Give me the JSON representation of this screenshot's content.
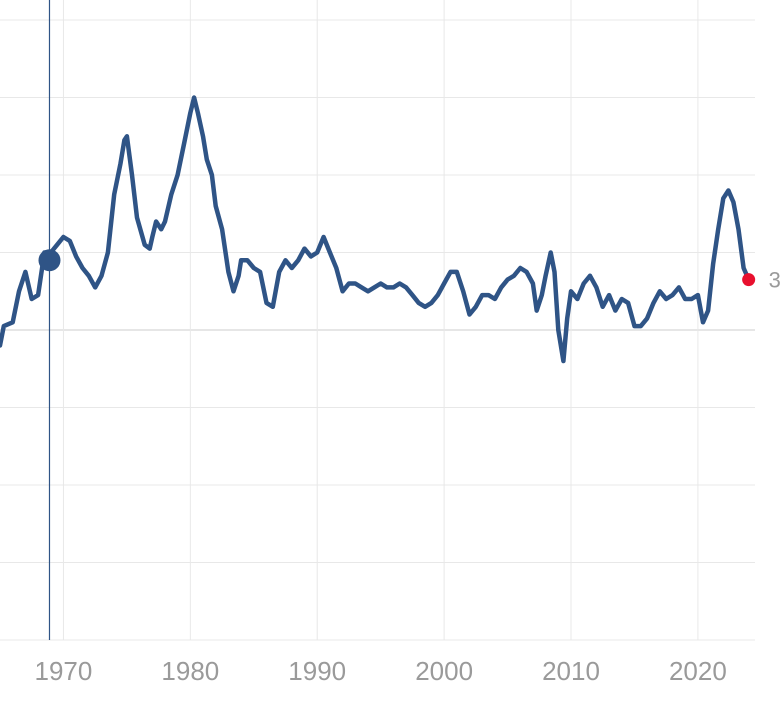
{
  "chart_data": {
    "type": "line",
    "title": "",
    "xlabel": "",
    "ylabel": "",
    "xlim": [
      1965,
      2024.5
    ],
    "ylim": [
      -8,
      8
    ],
    "x_ticks": [
      "1970",
      "1980",
      "1990",
      "2000",
      "2010",
      "2020"
    ],
    "grid": true,
    "colors": {
      "line": "#2f5486",
      "end_dot": "#e8102e",
      "cursor": "#2f5486"
    },
    "end_label": "3",
    "cursor": {
      "x": 1968.9,
      "y": 1.8
    },
    "end_point": {
      "x": 2024.0,
      "y": 1.3
    },
    "series": [
      {
        "values": [
          [
            1965.0,
            -0.4
          ],
          [
            1965.3,
            0.1
          ],
          [
            1966.0,
            0.2
          ],
          [
            1966.5,
            1.0
          ],
          [
            1967.0,
            1.5
          ],
          [
            1967.5,
            0.8
          ],
          [
            1968.0,
            0.9
          ],
          [
            1968.5,
            2.0
          ],
          [
            1969.0,
            2.0
          ],
          [
            1969.5,
            2.2
          ],
          [
            1970.0,
            2.4
          ],
          [
            1970.5,
            2.3
          ],
          [
            1971.0,
            1.9
          ],
          [
            1971.5,
            1.6
          ],
          [
            1972.0,
            1.4
          ],
          [
            1972.5,
            1.1
          ],
          [
            1973.0,
            1.4
          ],
          [
            1973.5,
            2.0
          ],
          [
            1974.0,
            3.5
          ],
          [
            1974.5,
            4.3
          ],
          [
            1974.8,
            4.9
          ],
          [
            1975.0,
            5.0
          ],
          [
            1975.4,
            4.0
          ],
          [
            1975.8,
            2.9
          ],
          [
            1976.4,
            2.2
          ],
          [
            1976.8,
            2.1
          ],
          [
            1977.0,
            2.4
          ],
          [
            1977.3,
            2.8
          ],
          [
            1977.7,
            2.6
          ],
          [
            1978.0,
            2.8
          ],
          [
            1978.5,
            3.5
          ],
          [
            1979.0,
            4.0
          ],
          [
            1979.5,
            4.8
          ],
          [
            1980.0,
            5.6
          ],
          [
            1980.3,
            6.0
          ],
          [
            1980.6,
            5.6
          ],
          [
            1981.0,
            5.0
          ],
          [
            1981.3,
            4.4
          ],
          [
            1981.7,
            4.0
          ],
          [
            1982.0,
            3.2
          ],
          [
            1982.5,
            2.6
          ],
          [
            1983.0,
            1.5
          ],
          [
            1983.4,
            1.0
          ],
          [
            1983.8,
            1.4
          ],
          [
            1984.0,
            1.8
          ],
          [
            1984.5,
            1.8
          ],
          [
            1985.0,
            1.6
          ],
          [
            1985.5,
            1.5
          ],
          [
            1986.0,
            0.7
          ],
          [
            1986.5,
            0.6
          ],
          [
            1987.0,
            1.5
          ],
          [
            1987.5,
            1.8
          ],
          [
            1988.0,
            1.6
          ],
          [
            1988.5,
            1.8
          ],
          [
            1989.0,
            2.1
          ],
          [
            1989.5,
            1.9
          ],
          [
            1990.0,
            2.0
          ],
          [
            1990.5,
            2.4
          ],
          [
            1991.0,
            2.0
          ],
          [
            1991.5,
            1.6
          ],
          [
            1992.0,
            1.0
          ],
          [
            1992.5,
            1.2
          ],
          [
            1993.0,
            1.2
          ],
          [
            1993.5,
            1.1
          ],
          [
            1994.0,
            1.0
          ],
          [
            1994.5,
            1.1
          ],
          [
            1995.0,
            1.2
          ],
          [
            1995.5,
            1.1
          ],
          [
            1996.0,
            1.1
          ],
          [
            1996.5,
            1.2
          ],
          [
            1997.0,
            1.1
          ],
          [
            1997.5,
            0.9
          ],
          [
            1998.0,
            0.7
          ],
          [
            1998.5,
            0.6
          ],
          [
            1999.0,
            0.7
          ],
          [
            1999.5,
            0.9
          ],
          [
            2000.0,
            1.2
          ],
          [
            2000.5,
            1.5
          ],
          [
            2001.0,
            1.5
          ],
          [
            2001.5,
            1.0
          ],
          [
            2002.0,
            0.4
          ],
          [
            2002.5,
            0.6
          ],
          [
            2003.0,
            0.9
          ],
          [
            2003.5,
            0.9
          ],
          [
            2004.0,
            0.8
          ],
          [
            2004.5,
            1.1
          ],
          [
            2005.0,
            1.3
          ],
          [
            2005.5,
            1.4
          ],
          [
            2006.0,
            1.6
          ],
          [
            2006.5,
            1.5
          ],
          [
            2007.0,
            1.2
          ],
          [
            2007.3,
            0.5
          ],
          [
            2007.7,
            0.9
          ],
          [
            2008.0,
            1.4
          ],
          [
            2008.4,
            2.0
          ],
          [
            2008.7,
            1.5
          ],
          [
            2009.0,
            0.0
          ],
          [
            2009.4,
            -0.8
          ],
          [
            2009.7,
            0.3
          ],
          [
            2010.0,
            1.0
          ],
          [
            2010.5,
            0.8
          ],
          [
            2011.0,
            1.2
          ],
          [
            2011.5,
            1.4
          ],
          [
            2012.0,
            1.1
          ],
          [
            2012.5,
            0.6
          ],
          [
            2013.0,
            0.9
          ],
          [
            2013.5,
            0.5
          ],
          [
            2014.0,
            0.8
          ],
          [
            2014.5,
            0.7
          ],
          [
            2015.0,
            0.1
          ],
          [
            2015.5,
            0.1
          ],
          [
            2016.0,
            0.3
          ],
          [
            2016.5,
            0.7
          ],
          [
            2017.0,
            1.0
          ],
          [
            2017.5,
            0.8
          ],
          [
            2018.0,
            0.9
          ],
          [
            2018.5,
            1.1
          ],
          [
            2019.0,
            0.8
          ],
          [
            2019.5,
            0.8
          ],
          [
            2020.0,
            0.9
          ],
          [
            2020.4,
            0.2
          ],
          [
            2020.8,
            0.5
          ],
          [
            2021.2,
            1.7
          ],
          [
            2021.6,
            2.6
          ],
          [
            2022.0,
            3.4
          ],
          [
            2022.4,
            3.6
          ],
          [
            2022.8,
            3.3
          ],
          [
            2023.2,
            2.6
          ],
          [
            2023.6,
            1.6
          ],
          [
            2024.0,
            1.3
          ]
        ]
      }
    ]
  }
}
